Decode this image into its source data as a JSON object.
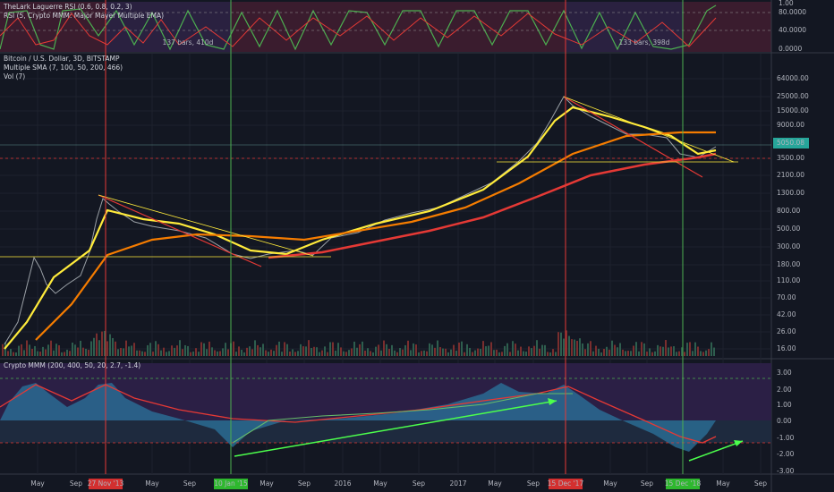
{
  "top_pane": {
    "titles": [
      "TheLark Laguerre RSI (0.6, 0.8, 0.2, 3)",
      "RSI (5, Crypto MMM: Major Mayer Multiple EMA)"
    ],
    "annotations": [
      "137 bars, 410d",
      "133 bars, 398d"
    ],
    "axis": [
      "1.00",
      "80.0000",
      "40.0000",
      "0.0000"
    ]
  },
  "main_pane": {
    "titles": [
      "Bitcoin / U.S. Dollar, 3D, BITSTAMP",
      "Multiple SMA (7, 100, 50, 200, 466)",
      "Vol (7)"
    ],
    "axis": [
      "64000.00",
      "25000.00",
      "15000.00",
      "9000.00",
      "5050.08",
      "3500.00",
      "2100.00",
      "1300.00",
      "800.00",
      "500.00",
      "300.00",
      "180.00",
      "110.00",
      "70.00",
      "42.00",
      "26.00",
      "16.00"
    ]
  },
  "bottom_pane": {
    "title": "Crypto MMM (200, 400, 50, 20, 2.7, -1.4)",
    "axis": [
      "3.00",
      "2.00",
      "1.00",
      "0.00",
      "-1.00",
      "-2.00",
      "-3.00"
    ]
  },
  "time_axis": [
    {
      "label": "May"
    },
    {
      "label": "Sep"
    },
    {
      "label": "27 Nov '13",
      "highlight": "#d32f2f"
    },
    {
      "label": "May"
    },
    {
      "label": "Sep"
    },
    {
      "label": "10 Jan '15",
      "highlight": "#2eb82e"
    },
    {
      "label": "May"
    },
    {
      "label": "Sep"
    },
    {
      "label": "2016"
    },
    {
      "label": "May"
    },
    {
      "label": "Sep"
    },
    {
      "label": "2017"
    },
    {
      "label": "May"
    },
    {
      "label": "Sep"
    },
    {
      "label": "15 Dec '17",
      "highlight": "#d32f2f"
    },
    {
      "label": "May"
    },
    {
      "label": "Sep"
    },
    {
      "label": "15 Dec '18",
      "highlight": "#2eb82e"
    },
    {
      "label": "May"
    },
    {
      "label": "Sep"
    }
  ]
}
